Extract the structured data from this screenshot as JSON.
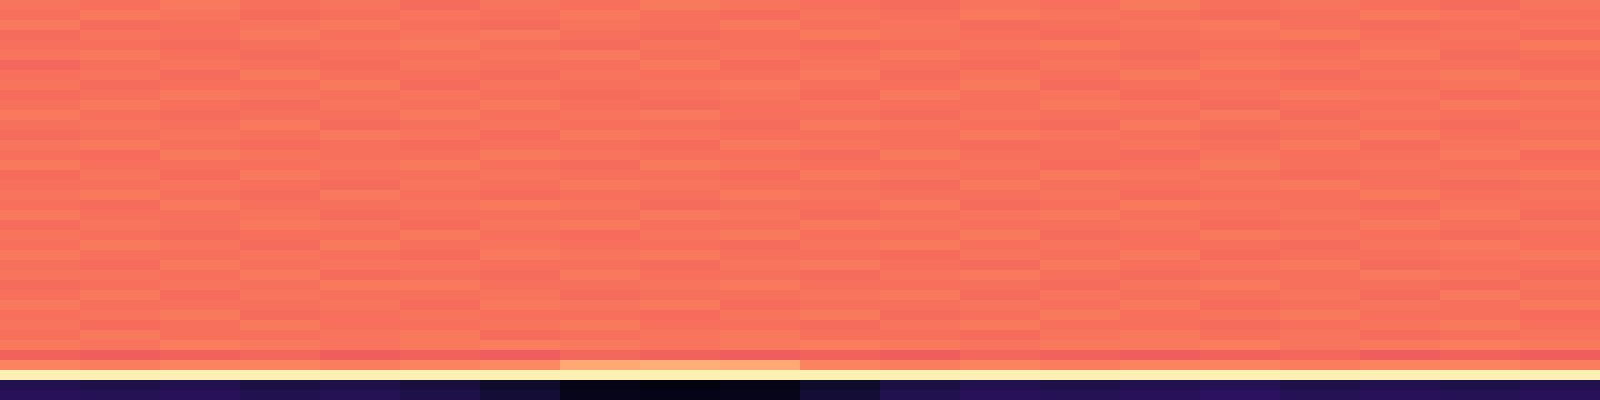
{
  "chart_data": {
    "type": "heatmap",
    "color": "magma",
    "zlim": [
      0,
      1
    ],
    "tick_labels": false,
    "values": [
      [
        0.71,
        0.7,
        0.72,
        0.7,
        0.71,
        0.69,
        0.71,
        0.7,
        0.72,
        0.71,
        0.7,
        0.69,
        0.71,
        0.7,
        0.72,
        0.7,
        0.71,
        0.7,
        0.69,
        0.71
      ],
      [
        0.7,
        0.72,
        0.71,
        0.69,
        0.7,
        0.71,
        0.7,
        0.72,
        0.7,
        0.69,
        0.71,
        0.7,
        0.72,
        0.71,
        0.7,
        0.69,
        0.7,
        0.72,
        0.71,
        0.7
      ],
      [
        0.72,
        0.69,
        0.7,
        0.71,
        0.72,
        0.7,
        0.69,
        0.71,
        0.7,
        0.72,
        0.7,
        0.71,
        0.69,
        0.7,
        0.71,
        0.72,
        0.7,
        0.69,
        0.7,
        0.71
      ],
      [
        0.69,
        0.71,
        0.7,
        0.72,
        0.7,
        0.71,
        0.72,
        0.7,
        0.69,
        0.7,
        0.72,
        0.71,
        0.7,
        0.69,
        0.7,
        0.71,
        0.72,
        0.7,
        0.71,
        0.69
      ],
      [
        0.7,
        0.7,
        0.69,
        0.7,
        0.71,
        0.72,
        0.7,
        0.69,
        0.71,
        0.7,
        0.69,
        0.7,
        0.71,
        0.72,
        0.7,
        0.7,
        0.69,
        0.71,
        0.7,
        0.72
      ],
      [
        0.71,
        0.72,
        0.7,
        0.69,
        0.7,
        0.7,
        0.71,
        0.72,
        0.7,
        0.71,
        0.7,
        0.72,
        0.7,
        0.7,
        0.69,
        0.71,
        0.7,
        0.72,
        0.69,
        0.7
      ],
      [
        0.68,
        0.7,
        0.71,
        0.7,
        0.69,
        0.71,
        0.7,
        0.7,
        0.72,
        0.69,
        0.71,
        0.7,
        0.69,
        0.71,
        0.7,
        0.72,
        0.71,
        0.7,
        0.7,
        0.69
      ],
      [
        0.7,
        0.71,
        0.69,
        0.72,
        0.7,
        0.7,
        0.69,
        0.71,
        0.7,
        0.7,
        0.72,
        0.69,
        0.71,
        0.7,
        0.72,
        0.7,
        0.69,
        0.71,
        0.72,
        0.7
      ],
      [
        0.71,
        0.69,
        0.7,
        0.7,
        0.72,
        0.69,
        0.71,
        0.7,
        0.71,
        0.72,
        0.7,
        0.7,
        0.72,
        0.69,
        0.7,
        0.71,
        0.7,
        0.7,
        0.71,
        0.72
      ],
      [
        0.69,
        0.7,
        0.72,
        0.71,
        0.7,
        0.71,
        0.7,
        0.69,
        0.7,
        0.71,
        0.69,
        0.72,
        0.7,
        0.71,
        0.69,
        0.7,
        0.72,
        0.71,
        0.69,
        0.7
      ],
      [
        0.7,
        0.72,
        0.7,
        0.69,
        0.71,
        0.7,
        0.72,
        0.7,
        0.69,
        0.7,
        0.71,
        0.7,
        0.7,
        0.72,
        0.71,
        0.69,
        0.7,
        0.7,
        0.72,
        0.71
      ],
      [
        0.72,
        0.7,
        0.69,
        0.7,
        0.7,
        0.72,
        0.7,
        0.71,
        0.72,
        0.7,
        0.7,
        0.69,
        0.71,
        0.7,
        0.7,
        0.72,
        0.69,
        0.71,
        0.7,
        0.7
      ],
      [
        0.7,
        0.71,
        0.7,
        0.72,
        0.69,
        0.7,
        0.71,
        0.7,
        0.7,
        0.69,
        0.72,
        0.71,
        0.7,
        0.69,
        0.72,
        0.7,
        0.71,
        0.7,
        0.69,
        0.71
      ],
      [
        0.69,
        0.7,
        0.71,
        0.7,
        0.72,
        0.71,
        0.69,
        0.72,
        0.71,
        0.7,
        0.7,
        0.7,
        0.72,
        0.71,
        0.7,
        0.69,
        0.7,
        0.72,
        0.7,
        0.7
      ],
      [
        0.71,
        0.72,
        0.7,
        0.69,
        0.7,
        0.69,
        0.7,
        0.7,
        0.69,
        0.72,
        0.71,
        0.7,
        0.69,
        0.7,
        0.71,
        0.7,
        0.72,
        0.69,
        0.71,
        0.72
      ],
      [
        0.7,
        0.69,
        0.72,
        0.71,
        0.7,
        0.7,
        0.72,
        0.71,
        0.7,
        0.7,
        0.69,
        0.72,
        0.7,
        0.7,
        0.69,
        0.71,
        0.7,
        0.7,
        0.72,
        0.69
      ],
      [
        0.72,
        0.7,
        0.7,
        0.7,
        0.71,
        0.72,
        0.7,
        0.69,
        0.72,
        0.71,
        0.7,
        0.7,
        0.71,
        0.69,
        0.7,
        0.72,
        0.7,
        0.71,
        0.7,
        0.7
      ],
      [
        0.69,
        0.71,
        0.69,
        0.72,
        0.7,
        0.7,
        0.71,
        0.7,
        0.7,
        0.69,
        0.72,
        0.71,
        0.7,
        0.72,
        0.71,
        0.7,
        0.69,
        0.7,
        0.71,
        0.72
      ],
      [
        0.7,
        0.7,
        0.71,
        0.7,
        0.69,
        0.71,
        0.7,
        0.72,
        0.71,
        0.7,
        0.7,
        0.69,
        0.72,
        0.7,
        0.7,
        0.71,
        0.72,
        0.7,
        0.69,
        0.7
      ],
      [
        0.71,
        0.72,
        0.7,
        0.69,
        0.72,
        0.7,
        0.69,
        0.7,
        0.7,
        0.72,
        0.71,
        0.7,
        0.7,
        0.71,
        0.69,
        0.7,
        0.7,
        0.72,
        0.7,
        0.71
      ],
      [
        0.7,
        0.69,
        0.72,
        0.7,
        0.7,
        0.71,
        0.72,
        0.71,
        0.69,
        0.7,
        0.7,
        0.72,
        0.69,
        0.7,
        0.72,
        0.71,
        0.7,
        0.69,
        0.71,
        0.7
      ],
      [
        0.72,
        0.7,
        0.7,
        0.71,
        0.69,
        0.7,
        0.7,
        0.7,
        0.72,
        0.71,
        0.69,
        0.7,
        0.71,
        0.72,
        0.7,
        0.7,
        0.71,
        0.7,
        0.72,
        0.69
      ],
      [
        0.69,
        0.71,
        0.7,
        0.72,
        0.71,
        0.69,
        0.71,
        0.72,
        0.7,
        0.7,
        0.72,
        0.71,
        0.7,
        0.7,
        0.71,
        0.69,
        0.7,
        0.72,
        0.7,
        0.71
      ],
      [
        0.71,
        0.7,
        0.69,
        0.7,
        0.7,
        0.72,
        0.7,
        0.69,
        0.71,
        0.72,
        0.7,
        0.7,
        0.72,
        0.69,
        0.7,
        0.72,
        0.71,
        0.7,
        0.69,
        0.7
      ],
      [
        0.7,
        0.72,
        0.71,
        0.69,
        0.72,
        0.7,
        0.71,
        0.7,
        0.7,
        0.69,
        0.71,
        0.72,
        0.7,
        0.71,
        0.7,
        0.7,
        0.69,
        0.71,
        0.72,
        0.7
      ],
      [
        0.72,
        0.7,
        0.7,
        0.71,
        0.7,
        0.69,
        0.72,
        0.71,
        0.72,
        0.7,
        0.7,
        0.69,
        0.71,
        0.7,
        0.72,
        0.69,
        0.7,
        0.7,
        0.71,
        0.72
      ],
      [
        0.7,
        0.69,
        0.72,
        0.7,
        0.71,
        0.71,
        0.7,
        0.7,
        0.69,
        0.71,
        0.72,
        0.7,
        0.69,
        0.72,
        0.7,
        0.71,
        0.72,
        0.69,
        0.7,
        0.7
      ],
      [
        0.71,
        0.71,
        0.7,
        0.72,
        0.69,
        0.7,
        0.69,
        0.72,
        0.7,
        0.7,
        0.69,
        0.71,
        0.72,
        0.7,
        0.69,
        0.7,
        0.7,
        0.72,
        0.71,
        0.69
      ],
      [
        0.69,
        0.7,
        0.71,
        0.7,
        0.72,
        0.72,
        0.7,
        0.7,
        0.71,
        0.72,
        0.7,
        0.7,
        0.7,
        0.69,
        0.71,
        0.72,
        0.7,
        0.7,
        0.69,
        0.71
      ],
      [
        0.7,
        0.72,
        0.69,
        0.71,
        0.7,
        0.7,
        0.71,
        0.69,
        0.7,
        0.7,
        0.71,
        0.72,
        0.69,
        0.71,
        0.7,
        0.7,
        0.71,
        0.69,
        0.72,
        0.7
      ],
      [
        0.72,
        0.7,
        0.7,
        0.7,
        0.71,
        0.69,
        0.72,
        0.71,
        0.72,
        0.69,
        0.7,
        0.7,
        0.71,
        0.7,
        0.72,
        0.69,
        0.7,
        0.71,
        0.7,
        0.72
      ],
      [
        0.7,
        0.71,
        0.72,
        0.69,
        0.7,
        0.71,
        0.7,
        0.7,
        0.69,
        0.71,
        0.72,
        0.69,
        0.7,
        0.72,
        0.7,
        0.71,
        0.72,
        0.7,
        0.7,
        0.69
      ],
      [
        0.71,
        0.69,
        0.7,
        0.72,
        0.7,
        0.7,
        0.71,
        0.72,
        0.7,
        0.7,
        0.69,
        0.71,
        0.72,
        0.7,
        0.7,
        0.69,
        0.7,
        0.71,
        0.72,
        0.7
      ],
      [
        0.7,
        0.72,
        0.7,
        0.7,
        0.71,
        0.72,
        0.69,
        0.7,
        0.71,
        0.72,
        0.7,
        0.7,
        0.69,
        0.71,
        0.72,
        0.7,
        0.71,
        0.69,
        0.7,
        0.71
      ],
      [
        0.72,
        0.71,
        0.73,
        0.72,
        0.71,
        0.72,
        0.73,
        0.72,
        0.71,
        0.72,
        0.73,
        0.72,
        0.71,
        0.72,
        0.72,
        0.73,
        0.71,
        0.72,
        0.73,
        0.72
      ],
      [
        0.67,
        0.66,
        0.67,
        0.68,
        0.66,
        0.67,
        0.66,
        0.68,
        0.67,
        0.66,
        0.67,
        0.66,
        0.68,
        0.67,
        0.66,
        0.67,
        0.68,
        0.66,
        0.67,
        0.66
      ],
      [
        0.74,
        0.73,
        0.74,
        0.74,
        0.73,
        0.74,
        0.75,
        0.82,
        0.83,
        0.82,
        0.74,
        0.73,
        0.74,
        0.73,
        0.74,
        0.74,
        0.73,
        0.74,
        0.74,
        0.73
      ],
      [
        0.97,
        0.97,
        0.97,
        0.97,
        0.97,
        0.97,
        0.97,
        0.97,
        0.97,
        0.97,
        0.97,
        0.97,
        0.97,
        0.97,
        0.97,
        0.97,
        0.97,
        0.97,
        0.97,
        0.97
      ],
      [
        0.14,
        0.13,
        0.14,
        0.12,
        0.13,
        0.11,
        0.08,
        0.04,
        0.03,
        0.04,
        0.08,
        0.12,
        0.14,
        0.13,
        0.14,
        0.15,
        0.13,
        0.14,
        0.13,
        0.14
      ],
      [
        0.16,
        0.15,
        0.16,
        0.14,
        0.15,
        0.13,
        0.1,
        0.05,
        0.04,
        0.05,
        0.1,
        0.14,
        0.16,
        0.15,
        0.16,
        0.17,
        0.15,
        0.16,
        0.15,
        0.16
      ]
    ]
  }
}
